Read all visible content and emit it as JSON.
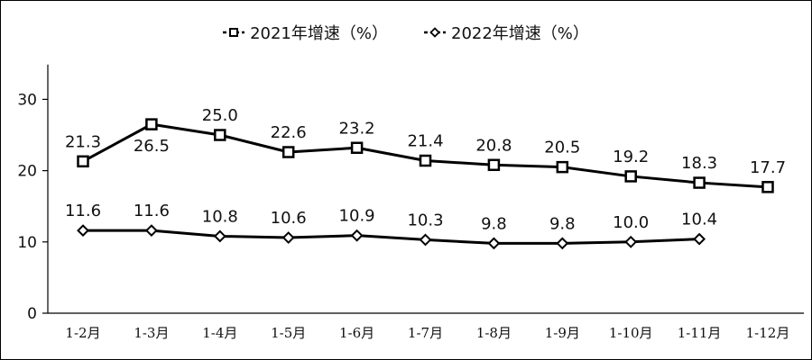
{
  "chart_data": {
    "type": "line",
    "categories": [
      "1-2月",
      "1-3月",
      "1-4月",
      "1-5月",
      "1-6月",
      "1-7月",
      "1-8月",
      "1-9月",
      "1-10月",
      "1-11月",
      "1-12月"
    ],
    "series": [
      {
        "name": "2021年增速（%）",
        "marker": "square",
        "values": [
          21.3,
          26.5,
          25.0,
          22.6,
          23.2,
          21.4,
          20.8,
          20.5,
          19.2,
          18.3,
          17.7
        ],
        "labels": [
          "21.3",
          "26.5",
          "25.0",
          "22.6",
          "23.2",
          "21.4",
          "20.8",
          "20.5",
          "19.2",
          "18.3",
          "17.7"
        ]
      },
      {
        "name": "2022年增速（%）",
        "marker": "diamond",
        "values": [
          11.6,
          11.6,
          10.8,
          10.6,
          10.9,
          10.3,
          9.8,
          9.8,
          10.0,
          10.4,
          null
        ],
        "labels": [
          "11.6",
          "11.6",
          "10.8",
          "10.6",
          "10.9",
          "10.3",
          "9.8",
          "9.8",
          "10.0",
          "10.4",
          null
        ]
      }
    ],
    "y_ticks": [
      "0",
      "10",
      "20",
      "30"
    ],
    "ylim": [
      0,
      35
    ],
    "grid": false,
    "legend_position": "top-center",
    "line_color": "#000000"
  }
}
